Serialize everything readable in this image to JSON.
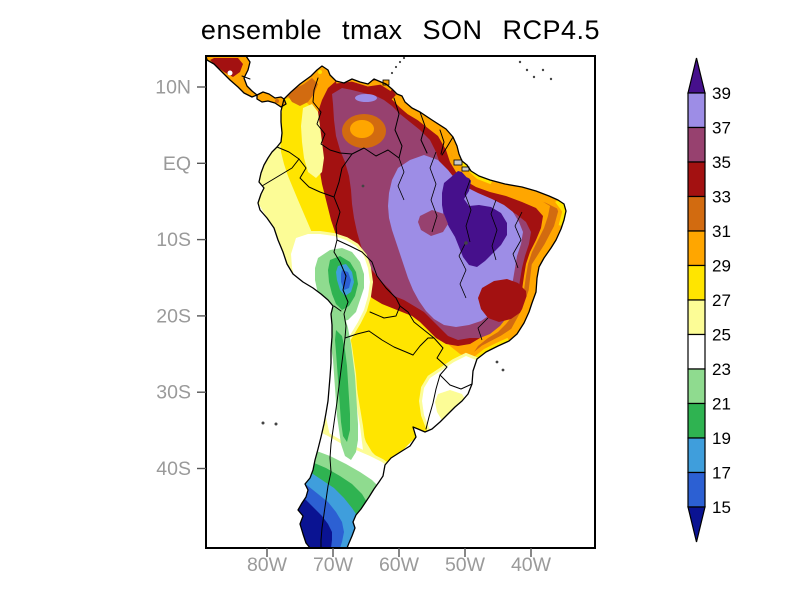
{
  "title": "ensemble tmax SON RCP4.5",
  "axes": {
    "lat_ticks": [
      "10N",
      "EQ",
      "10S",
      "20S",
      "30S",
      "40S"
    ],
    "lon_ticks": [
      "80W",
      "70W",
      "60W",
      "50W",
      "40W"
    ]
  },
  "colorbar": {
    "labels": [
      "39",
      "37",
      "35",
      "33",
      "31",
      "29",
      "27",
      "25",
      "23",
      "21",
      "19",
      "17",
      "15"
    ],
    "segment_colors": [
      "#9D8DE6",
      "#97416F",
      "#A31111",
      "#D26B10",
      "#FFA600",
      "#FFE500",
      "#FCFC96",
      "#FFFFFF",
      "#8FDB8F",
      "#2FB351",
      "#3F9EDC",
      "#2C60D3"
    ],
    "above_color": "#46108C",
    "below_color": "#0A1392"
  },
  "palette": {
    "p39": "#46108C",
    "p37": "#9D8DE6",
    "p35": "#97416F",
    "p33": "#A31111",
    "p31": "#D26B10",
    "p29": "#FFA600",
    "p27": "#FFE500",
    "p25": "#FCFC96",
    "p23": "#FFFFFF",
    "p21": "#8FDB8F",
    "p19": "#2FB351",
    "p17": "#3F9EDC",
    "p15": "#2C60D3",
    "p13": "#0A1392",
    "axislabel": "#9A9A9A",
    "tick": "#555555",
    "coast": "#000000"
  },
  "chart_data": {
    "type": "heatmap",
    "subtype": "filled-contour-map",
    "title": "ensemble tmax SON RCP4.5",
    "variable": "tmax",
    "season": "SON",
    "scenario": "RCP4.5",
    "region": "South America",
    "levels": [
      15,
      17,
      19,
      21,
      23,
      25,
      27,
      29,
      31,
      33,
      35,
      37,
      39
    ],
    "level_colors_cold_to_hot": [
      "#0A1392",
      "#2C60D3",
      "#3F9EDC",
      "#2FB351",
      "#8FDB8F",
      "#FFFFFF",
      "#FCFC96",
      "#FFE500",
      "#FFA600",
      "#D26B10",
      "#A31111",
      "#97416F",
      "#9D8DE6",
      "#46108C"
    ],
    "x_tick_labels": [
      "80W",
      "70W",
      "60W",
      "50W",
      "40W"
    ],
    "y_tick_labels": [
      "10N",
      "EQ",
      "10S",
      "20S",
      "30S",
      "40S"
    ],
    "legend_position": "right",
    "notes": "warm maximum (>39) over central/eastern Amazonia, cold minimum (<15) over southern Patagonia and the Andes"
  }
}
